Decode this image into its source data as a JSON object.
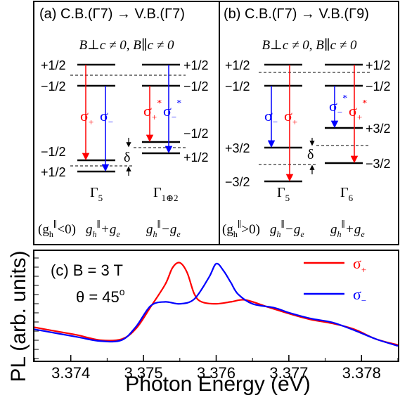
{
  "colors": {
    "sigma_plus": "#ff0000",
    "sigma_minus": "#0000ff",
    "frame": "#000000"
  },
  "panel_a": {
    "label": "(a) C.B.(Γ7) → V.B.(Γ7)",
    "condition": "B⊥c ≠ 0, B∥c ≠ 0",
    "levels": {
      "up_top": "+1/2",
      "up_bottom": "−1/2",
      "low_top": "−1/2",
      "low_bottom": "+1/2",
      "right_up_top": "+1/2",
      "right_up_bottom": "−1/2",
      "right_low_top": "−1/2",
      "right_low_bottom": "+1/2"
    },
    "sym_left": "Γ5",
    "sym_right": "Γ1⊕2",
    "delta": "δ",
    "g_condition": "(gh∥<0)",
    "g_left": "gh∥+ge",
    "g_right": "gh∥−ge",
    "sigma_plus": "σ+",
    "sigma_minus": "σ−",
    "sigma_plus_star": "σ+*",
    "sigma_minus_star": "σ−*"
  },
  "panel_b": {
    "label": "(b) C.B.(Γ7) → V.B.(Γ9)",
    "condition": "B⊥c ≠ 0, B∥c ≠ 0",
    "levels": {
      "up_top": "+1/2",
      "up_bottom": "−1/2",
      "low_top": "+3/2",
      "low_bottom": "−3/2",
      "right_up_top": "+1/2",
      "right_up_bottom": "−1/2",
      "right_low_top": "+3/2",
      "right_low_bottom": "−3/2"
    },
    "sym_left": "Γ5",
    "sym_right": "Γ6",
    "delta": "δ",
    "g_condition": "(gh∥>0)",
    "g_left": "gh∥−ge",
    "g_right": "gh∥+ge"
  },
  "panel_c": {
    "label": "(c) B = 3 T",
    "angle": "θ = 45°",
    "xlabel": "Photon Energy (eV)",
    "ylabel": "PL (arb. units)",
    "legend": [
      "σ+",
      "σ−"
    ]
  },
  "chart_data": {
    "type": "line",
    "xlim": [
      3.3735,
      3.3785
    ],
    "ylim": [
      0,
      1.12
    ],
    "grid": false,
    "legend_position": "top-right",
    "xticks": [
      3.374,
      3.375,
      3.376,
      3.377,
      3.378
    ],
    "xticklabels": [
      "3.374",
      "3.375",
      "3.376",
      "3.377",
      "3.378"
    ],
    "series": [
      {
        "name": "σ+",
        "color": "#ff0000",
        "x": [
          3.3735,
          3.3738,
          3.3741,
          3.3744,
          3.3747,
          3.3749,
          3.3751,
          3.3753,
          3.3754,
          3.3755,
          3.3756,
          3.3757,
          3.3758,
          3.376,
          3.3762,
          3.3764,
          3.3767,
          3.377,
          3.3773,
          3.3776,
          3.3779,
          3.3782,
          3.3785
        ],
        "y": [
          0.34,
          0.3,
          0.26,
          0.21,
          0.22,
          0.33,
          0.55,
          0.78,
          0.95,
          1.0,
          0.9,
          0.68,
          0.6,
          0.58,
          0.6,
          0.62,
          0.55,
          0.48,
          0.42,
          0.38,
          0.32,
          0.22,
          0.16
        ]
      },
      {
        "name": "σ−",
        "color": "#0000ff",
        "x": [
          3.3735,
          3.3738,
          3.3741,
          3.3744,
          3.3747,
          3.3749,
          3.3751,
          3.3753,
          3.3755,
          3.3757,
          3.3759,
          3.376,
          3.3761,
          3.3762,
          3.3763,
          3.3765,
          3.3768,
          3.377,
          3.3773,
          3.3776,
          3.3779,
          3.3782,
          3.3785
        ],
        "y": [
          0.32,
          0.28,
          0.24,
          0.2,
          0.21,
          0.35,
          0.56,
          0.6,
          0.58,
          0.63,
          0.85,
          0.99,
          0.92,
          0.8,
          0.68,
          0.58,
          0.54,
          0.49,
          0.43,
          0.39,
          0.31,
          0.22,
          0.15
        ]
      }
    ]
  }
}
